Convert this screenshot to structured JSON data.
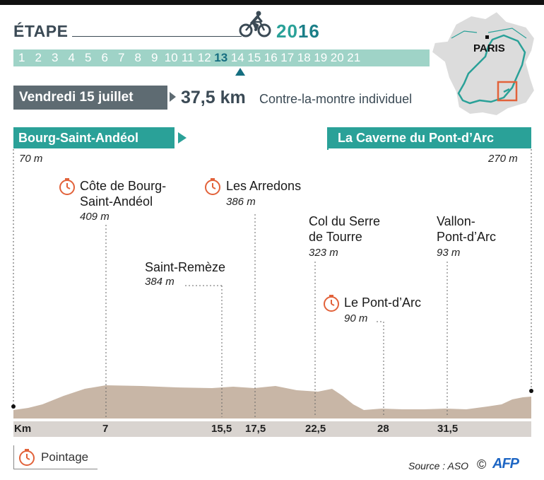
{
  "header": {
    "title": "ÉTAPE",
    "year_first": "20",
    "year_rest": "16"
  },
  "stages": [
    "1",
    "2",
    "3",
    "4",
    "5",
    "6",
    "7",
    "8",
    "9",
    "10",
    "11",
    "12",
    "13",
    "14",
    "15",
    "16",
    "17",
    "18",
    "19",
    "20",
    "21"
  ],
  "active_stage": "13",
  "info": {
    "date": "Vendredi 15 juillet",
    "distance": "37,5 km",
    "type": "Contre-la-montre individuel"
  },
  "map": {
    "city_label": "PARIS"
  },
  "route": {
    "start": "Bourg-Saint-Andéol",
    "finish": "La Caverne du Pont-d’Arc",
    "start_altitude": "70 m",
    "finish_altitude": "270 m"
  },
  "points": [
    {
      "name_line1": "Côte de Bourg-",
      "name_line2": "Saint-Andéol",
      "altitude": "409 m",
      "km": "7",
      "timed": true
    },
    {
      "name_line1": "Saint-Remèze",
      "name_line2": "",
      "altitude": "384 m",
      "km": "15,5",
      "timed": false
    },
    {
      "name_line1": "Les Arredons",
      "name_line2": "",
      "altitude": "386 m",
      "km": "17,5",
      "timed": true
    },
    {
      "name_line1": "Col du Serre",
      "name_line2": "de Tourre",
      "altitude": "323 m",
      "km": "22,5",
      "timed": false
    },
    {
      "name_line1": "Le Pont-d’Arc",
      "name_line2": "",
      "altitude": "90 m",
      "km": "28",
      "timed": true
    },
    {
      "name_line1": "Vallon-",
      "name_line2": "Pont-d’Arc",
      "altitude": "93 m",
      "km": "31,5",
      "timed": false
    }
  ],
  "km_axis": {
    "unit_label": "Km"
  },
  "legend": {
    "label": "Pointage"
  },
  "footer": {
    "source": "Source : ASO",
    "copyright": "©",
    "agency": "AFP"
  },
  "colors": {
    "teal": "#2aa198",
    "dark_teal": "#156e80",
    "stage_bar": "#9fd3c7",
    "slate": "#5e6b72",
    "profile": "#c8b6a6",
    "timer": "#e2623a",
    "map_highlight": "#e2623a"
  },
  "icons": {
    "cyclist": "cyclist-icon",
    "timer": "stopwatch-icon",
    "map": "france-map-icon"
  }
}
